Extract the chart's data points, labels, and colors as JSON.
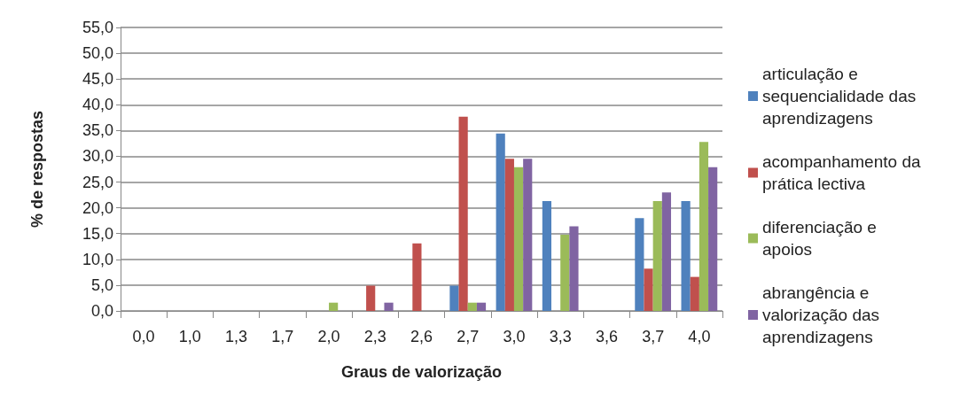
{
  "chart_data": {
    "type": "bar",
    "xlabel": "Graus de valorização",
    "ylabel": "% de respostas",
    "categories": [
      "0,0",
      "1,0",
      "1,3",
      "1,7",
      "2,0",
      "2,3",
      "2,6",
      "2,7",
      "3,0",
      "3,3",
      "3,6",
      "3,7",
      "4,0"
    ],
    "series": [
      {
        "name": "articulação e sequencialidade das aprendizagens",
        "color": "#4f81bd",
        "values": [
          0,
          0,
          0,
          0,
          0,
          0,
          0,
          4.9,
          34.4,
          21.3,
          0,
          18.0,
          21.3
        ]
      },
      {
        "name": "acompanhamento da prática lectiva",
        "color": "#c0504d",
        "values": [
          0,
          0,
          0,
          0,
          0,
          4.9,
          13.1,
          37.7,
          29.5,
          0,
          0,
          8.2,
          6.6
        ]
      },
      {
        "name": "diferenciação e apoios",
        "color": "#9bbb59",
        "values": [
          0,
          0,
          0,
          0,
          1.6,
          0,
          0,
          1.6,
          27.9,
          14.8,
          0,
          21.3,
          32.8
        ]
      },
      {
        "name": "abrangência e valorização das aprendizagens",
        "color": "#8064a2",
        "values": [
          0,
          0,
          0,
          0,
          0,
          1.6,
          0,
          1.6,
          29.5,
          16.4,
          0,
          23.0,
          27.9
        ]
      }
    ],
    "ylim": [
      0,
      55
    ],
    "yticks": [
      {
        "value": 0,
        "label": "0,0"
      },
      {
        "value": 5,
        "label": "5,0"
      },
      {
        "value": 10,
        "label": "10,0"
      },
      {
        "value": 15,
        "label": "15,0"
      },
      {
        "value": 20,
        "label": "20,0"
      },
      {
        "value": 25,
        "label": "25,0"
      },
      {
        "value": 30,
        "label": "30,0"
      },
      {
        "value": 35,
        "label": "35,0"
      },
      {
        "value": 40,
        "label": "40,0"
      },
      {
        "value": 45,
        "label": "45,0"
      },
      {
        "value": 50,
        "label": "50,0"
      },
      {
        "value": 55,
        "label": "55,0"
      }
    ],
    "grid": "y",
    "legend": "right"
  }
}
